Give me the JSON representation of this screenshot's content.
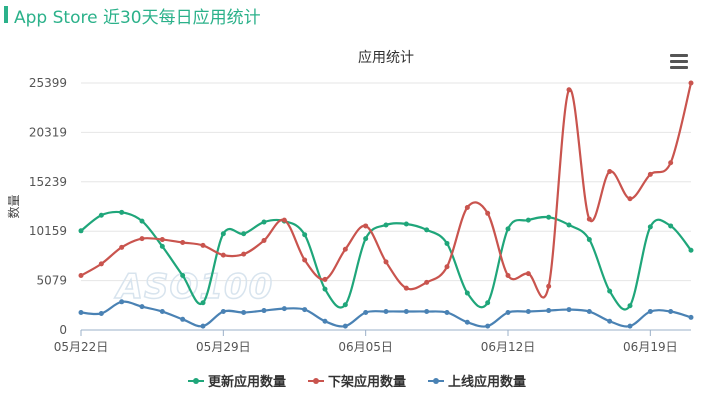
{
  "header": {
    "title": "App Store 近30天每日应用统计"
  },
  "menu": {
    "icon": "hamburger-menu-icon"
  },
  "chart_data": {
    "type": "line",
    "title": "应用统计",
    "ylabel": "数量",
    "xlabel": "",
    "y_ticks": [
      0,
      5079,
      10159,
      15239,
      20319,
      25399
    ],
    "ylim": [
      0,
      25399
    ],
    "x_tick_labels": [
      "05月22日",
      "05月29日",
      "06月05日",
      "06月12日",
      "06月19日"
    ],
    "x_tick_index": [
      0,
      7,
      14,
      21,
      28
    ],
    "x_count": 31,
    "grid": true,
    "legend_position": "bottom",
    "watermark": "ASO100",
    "series": [
      {
        "name": "更新应用数量",
        "color": "#1fa67a",
        "values": [
          10200,
          11800,
          12100,
          11200,
          8600,
          5600,
          2800,
          9900,
          9900,
          11100,
          11200,
          9800,
          4200,
          2600,
          9400,
          10800,
          10900,
          10300,
          8900,
          3800,
          2800,
          10400,
          11300,
          11600,
          10800,
          9300,
          4000,
          2500,
          10600,
          10700,
          8200
        ]
      },
      {
        "name": "下架应用数量",
        "color": "#c9544e",
        "values": [
          5600,
          6800,
          8500,
          9400,
          9300,
          9000,
          8700,
          7700,
          7800,
          9200,
          11300,
          7200,
          5200,
          8300,
          10700,
          7000,
          4300,
          4900,
          6500,
          12600,
          12000,
          5600,
          5800,
          4500,
          24700,
          11400,
          16300,
          13500,
          16000,
          17200,
          25400
        ]
      },
      {
        "name": "上线应用数量",
        "color": "#4a82b4",
        "values": [
          1800,
          1700,
          2900,
          2400,
          1900,
          1100,
          400,
          1900,
          1800,
          2000,
          2200,
          2100,
          900,
          400,
          1800,
          1900,
          1900,
          1900,
          1800,
          800,
          400,
          1800,
          1900,
          2000,
          2100,
          1900,
          900,
          400,
          1900,
          1900,
          1300
        ]
      }
    ]
  }
}
